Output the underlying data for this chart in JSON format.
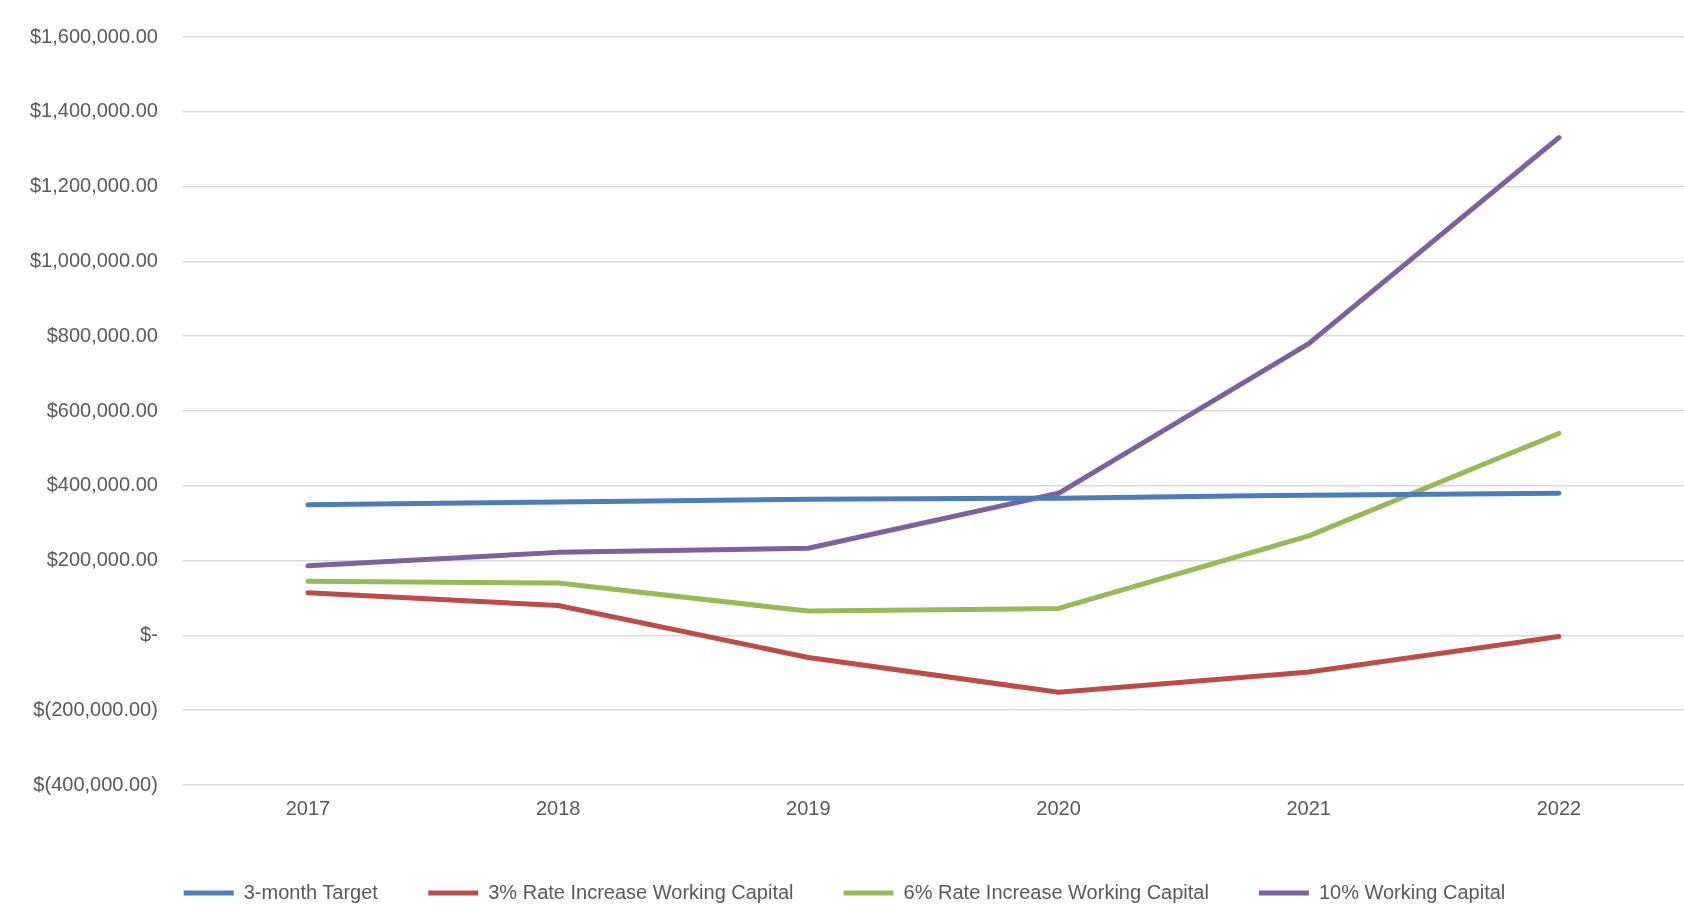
{
  "chart_data": {
    "type": "line",
    "categories": [
      "2017",
      "2018",
      "2019",
      "2020",
      "2021",
      "2022"
    ],
    "series": [
      {
        "name": "3-month Target",
        "color": "#4a7ebb",
        "values": [
          349000,
          357000,
          364000,
          367000,
          375000,
          380000
        ]
      },
      {
        "name": "3% Rate Increase Working Capital",
        "color": "#be4b48",
        "values": [
          114000,
          80000,
          -59000,
          -152000,
          -98000,
          -3000
        ]
      },
      {
        "name": "6% Rate Increase Working Capital",
        "color": "#98b954",
        "values": [
          145000,
          140000,
          65000,
          72000,
          266000,
          540000
        ]
      },
      {
        "name": "10% Working Capital",
        "color": "#7d60a0",
        "values": [
          186000,
          222000,
          233000,
          380000,
          780000,
          1331000
        ]
      }
    ],
    "ylim": [
      -400000,
      1600000
    ],
    "yticks": [
      {
        "value": -400000,
        "label": "$(400,000.00)"
      },
      {
        "value": -200000,
        "label": "$(200,000.00)"
      },
      {
        "value": 0,
        "label": "$-"
      },
      {
        "value": 200000,
        "label": "$200,000.00"
      },
      {
        "value": 400000,
        "label": "$400,000.00"
      },
      {
        "value": 600000,
        "label": "$600,000.00"
      },
      {
        "value": 800000,
        "label": "$800,000.00"
      },
      {
        "value": 1000000,
        "label": "$1,000,000.00"
      },
      {
        "value": 1200000,
        "label": "$1,200,000.00"
      },
      {
        "value": 1400000,
        "label": "$1,400,000.00"
      },
      {
        "value": 1600000,
        "label": "$1,600,000.00"
      }
    ],
    "grid": "y",
    "legend": "bottom",
    "marker": "none"
  }
}
